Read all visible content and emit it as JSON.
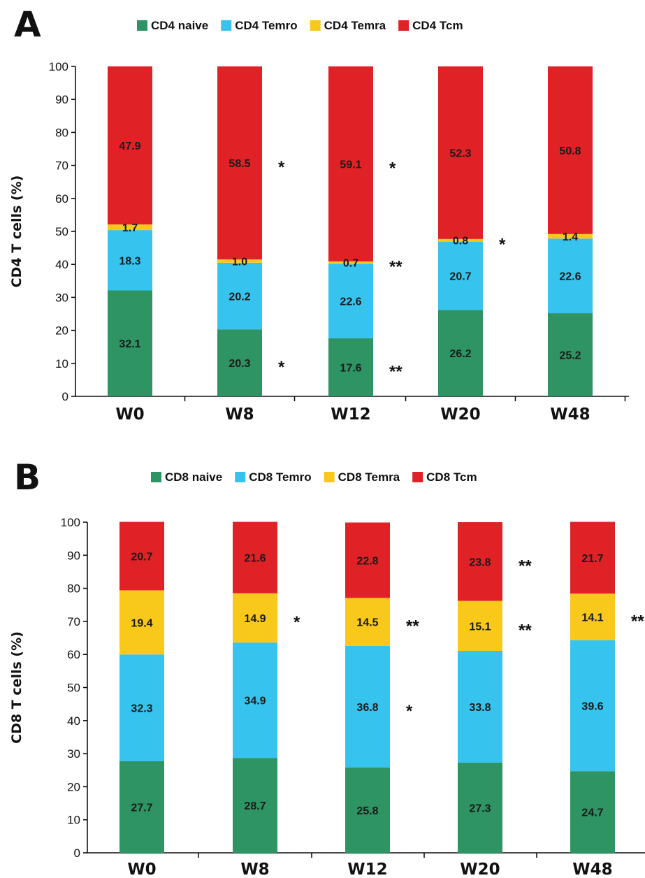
{
  "chart_data": [
    {
      "type": "bar",
      "stacked": true,
      "panel": "A",
      "ylabel": "CD4 T cells (%)",
      "ylim": [
        0,
        100
      ],
      "yticks": [
        0,
        10,
        20,
        30,
        40,
        50,
        60,
        70,
        80,
        90,
        100
      ],
      "categories": [
        "W0",
        "W8",
        "W12",
        "W20",
        "W48"
      ],
      "legend_position": "top",
      "series": [
        {
          "name": "CD4 naive",
          "color": "#2e9463",
          "values": [
            32.1,
            20.3,
            17.6,
            26.2,
            25.2
          ],
          "labels": [
            "32.1",
            "20.3",
            "17.6",
            "26.2",
            "25.2"
          ]
        },
        {
          "name": "CD4 Temro",
          "color": "#36c4ef",
          "values": [
            18.3,
            20.2,
            22.6,
            20.7,
            22.6
          ],
          "labels": [
            "18.3",
            "20.2",
            "22.6",
            "20.7",
            "22.6"
          ]
        },
        {
          "name": "CD4 Temra",
          "color": "#f8c81b",
          "values": [
            1.7,
            1.0,
            0.7,
            0.8,
            1.4
          ],
          "labels": [
            "1.7",
            "1.0",
            "0.7",
            "0.8",
            "1.4"
          ]
        },
        {
          "name": "CD4 Tcm",
          "color": "#e02227",
          "values": [
            47.9,
            58.5,
            59.1,
            52.3,
            50.8
          ],
          "labels": [
            "47.9",
            "58.5",
            "59.1",
            "52.3",
            "50.8"
          ]
        }
      ],
      "significance": [
        {
          "category": "W8",
          "series": "CD4 naive",
          "text": "*"
        },
        {
          "category": "W8",
          "series": "CD4 Tcm",
          "text": "*"
        },
        {
          "category": "W12",
          "series": "CD4 naive",
          "text": "**"
        },
        {
          "category": "W12",
          "series": "CD4 Temra",
          "text": "**"
        },
        {
          "category": "W12",
          "series": "CD4 Tcm",
          "text": "*"
        },
        {
          "category": "W20",
          "series": "CD4 Temra",
          "text": "*"
        }
      ]
    },
    {
      "type": "bar",
      "stacked": true,
      "panel": "B",
      "ylabel": "CD8 T cells (%)",
      "ylim": [
        0,
        100
      ],
      "yticks": [
        0,
        10,
        20,
        30,
        40,
        50,
        60,
        70,
        80,
        90,
        100
      ],
      "categories": [
        "W0",
        "W8",
        "W12",
        "W20",
        "W48"
      ],
      "legend_position": "top",
      "series": [
        {
          "name": "CD8 naive",
          "color": "#2e9463",
          "values": [
            27.7,
            28.7,
            25.8,
            27.3,
            24.7
          ],
          "labels": [
            "27.7",
            "28.7",
            "25.8",
            "27.3",
            "24.7"
          ]
        },
        {
          "name": "CD8 Temro",
          "color": "#36c4ef",
          "values": [
            32.3,
            34.9,
            36.8,
            33.8,
            39.6
          ],
          "labels": [
            "32.3",
            "34.9",
            "36.8",
            "33.8",
            "39.6"
          ]
        },
        {
          "name": "CD8 Temra",
          "color": "#f8c81b",
          "values": [
            19.4,
            14.9,
            14.5,
            15.1,
            14.1
          ],
          "labels": [
            "19.4",
            "14.9",
            "14.5",
            "15.1",
            "14.1"
          ]
        },
        {
          "name": "CD8 Tcm",
          "color": "#e02227",
          "values": [
            20.7,
            21.6,
            22.8,
            23.8,
            21.7
          ],
          "labels": [
            "20.7",
            "21.6",
            "22.8",
            "23.8",
            "21.7"
          ]
        }
      ],
      "significance": [
        {
          "category": "W8",
          "series": "CD8 Temra",
          "text": "*"
        },
        {
          "category": "W12",
          "series": "CD8 Temra",
          "text": "**"
        },
        {
          "category": "W12",
          "series": "CD8 Temro",
          "text": "*"
        },
        {
          "category": "W20",
          "series": "CD8 Tcm",
          "text": "**"
        },
        {
          "category": "W20",
          "series": "CD8 Temra",
          "text": "**"
        },
        {
          "category": "W48",
          "series": "CD8 Temra",
          "text": "**"
        }
      ]
    }
  ]
}
